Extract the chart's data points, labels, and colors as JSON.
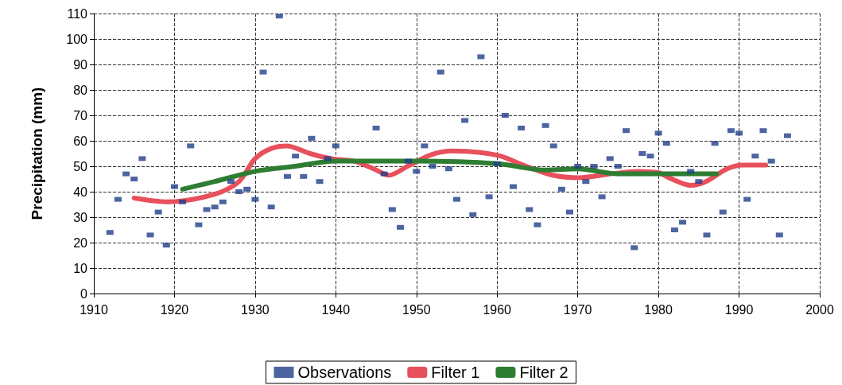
{
  "chart_data": {
    "type": "scatter",
    "ylabel": "Precipitation (mm)",
    "xlim": [
      1910,
      2000
    ],
    "xticks": [
      1910,
      1920,
      1930,
      1940,
      1950,
      1960,
      1970,
      1980,
      1990,
      2000
    ],
    "ylim": [
      0,
      110
    ],
    "yticks": [
      0,
      10,
      20,
      30,
      40,
      50,
      60,
      70,
      80,
      90,
      100,
      110
    ],
    "grid": true,
    "legend": "bottom",
    "marker": "square",
    "series": [
      {
        "name": "Observations",
        "color": "#1f3f8a",
        "x": [
          1912,
          1913,
          1914,
          1915,
          1916,
          1917,
          1918,
          1919,
          1920,
          1921,
          1922,
          1923,
          1924,
          1925,
          1926,
          1927,
          1928,
          1929,
          1930,
          1931,
          1932,
          1933,
          1934,
          1935,
          1936,
          1937,
          1938,
          1939,
          1940,
          1945,
          1946,
          1947,
          1948,
          1949,
          1950,
          1951,
          1952,
          1953,
          1954,
          1955,
          1956,
          1957,
          1958,
          1959,
          1960,
          1961,
          1962,
          1963,
          1964,
          1965,
          1966,
          1967,
          1968,
          1969,
          1970,
          1971,
          1972,
          1973,
          1974,
          1975,
          1976,
          1977,
          1978,
          1979,
          1980,
          1981,
          1982,
          1983,
          1984,
          1985,
          1986,
          1987,
          1988,
          1989,
          1990,
          1991,
          1992,
          1993,
          1994,
          1995,
          1996
        ],
        "values": [
          24,
          37,
          47,
          45,
          53,
          23,
          32,
          19,
          42,
          36,
          58,
          27,
          33,
          34,
          36,
          44,
          40,
          41,
          37,
          87,
          34,
          109,
          46,
          54,
          46,
          61,
          44,
          53,
          58,
          65,
          47,
          33,
          26,
          52,
          48,
          58,
          50,
          87,
          49,
          37,
          68,
          31,
          93,
          38,
          51,
          70,
          42,
          65,
          33,
          27,
          66,
          58,
          41,
          32,
          50,
          44,
          50,
          38,
          53,
          50,
          64,
          18,
          55,
          54,
          63,
          59,
          25,
          28,
          48,
          44,
          23,
          59,
          32,
          64,
          63,
          37,
          54,
          64,
          52,
          23,
          62
        ]
      },
      {
        "name": "Filter 1",
        "type": "line",
        "color": "#e8505b",
        "marker": "none",
        "x": [
          1915,
          1919.1,
          1925,
          1928,
          1930,
          1932,
          1933.9,
          1936.8,
          1939.4,
          1942.3,
          1944.7,
          1946.6,
          1948.9,
          1951.8,
          1954.5,
          1957.7,
          1960.4,
          1963.6,
          1966.9,
          1970.2,
          1974.1,
          1977.4,
          1980,
          1981.3,
          1984,
          1985.9,
          1988.5,
          1990.5,
          1993.3
        ],
        "values": [
          37.5,
          36,
          39,
          44,
          53,
          57,
          58,
          55,
          53,
          52,
          49,
          46.5,
          50,
          54.5,
          56,
          55.5,
          54,
          50,
          46.5,
          45.5,
          47,
          48,
          47.5,
          45.5,
          42.5,
          44,
          49,
          50.5,
          50.5
        ]
      },
      {
        "name": "Filter 2",
        "type": "line",
        "color": "#2e7d32",
        "marker": "none",
        "x": [
          1921,
          1925,
          1930,
          1935,
          1940,
          1945,
          1950,
          1960,
          1966,
          1970,
          1975,
          1980,
          1987.2
        ],
        "values": [
          41,
          44,
          48,
          50,
          52,
          52,
          52,
          51,
          48.5,
          49,
          47,
          47,
          47
        ]
      }
    ]
  }
}
